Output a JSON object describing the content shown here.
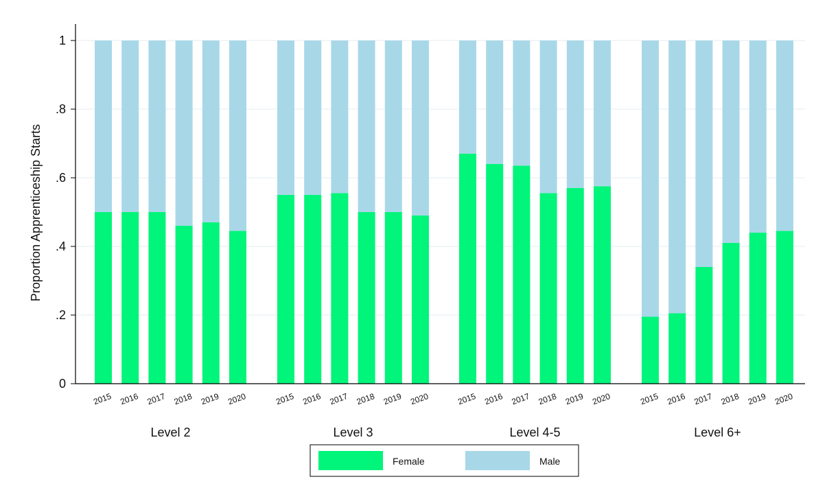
{
  "chart_data": {
    "type": "bar",
    "stacked": true,
    "normalized": true,
    "ylabel": "Proportion Apprenticeship Starts",
    "ylim": [
      0,
      1
    ],
    "yticks": [
      0,
      0.2,
      0.4,
      0.6,
      0.8,
      1
    ],
    "ytick_labels": [
      "0",
      ".2",
      ".4",
      ".6",
      ".8",
      "1"
    ],
    "grid": true,
    "groups": [
      {
        "label": "Level 2",
        "years": [
          "2015",
          "2016",
          "2017",
          "2018",
          "2019",
          "2020"
        ],
        "female": [
          0.5,
          0.5,
          0.5,
          0.46,
          0.47,
          0.445
        ]
      },
      {
        "label": "Level 3",
        "years": [
          "2015",
          "2016",
          "2017",
          "2018",
          "2019",
          "2020"
        ],
        "female": [
          0.55,
          0.55,
          0.555,
          0.5,
          0.5,
          0.49
        ]
      },
      {
        "label": "Level 4-5",
        "years": [
          "2015",
          "2016",
          "2017",
          "2018",
          "2019",
          "2020"
        ],
        "female": [
          0.67,
          0.64,
          0.635,
          0.555,
          0.57,
          0.575
        ]
      },
      {
        "label": "Level 6+",
        "years": [
          "2015",
          "2016",
          "2017",
          "2018",
          "2019",
          "2020"
        ],
        "female": [
          0.195,
          0.205,
          0.34,
          0.41,
          0.44,
          0.445
        ]
      }
    ],
    "series": [
      {
        "name": "Female",
        "color": "#00f57a"
      },
      {
        "name": "Male",
        "color": "#a8d8e8"
      }
    ],
    "legend": {
      "position": "bottom"
    }
  }
}
